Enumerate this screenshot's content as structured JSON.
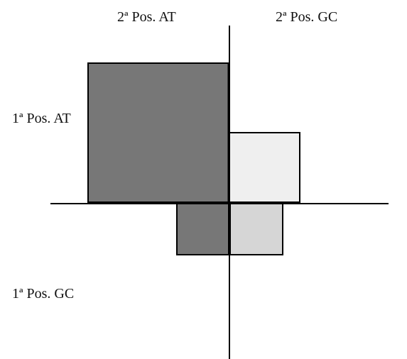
{
  "labels": {
    "top_left": "2ª Pos. AT",
    "top_right": "2ª Pos. GC",
    "left_upper": "1ª Pos. AT",
    "left_lower": "1ª Pos. GC"
  },
  "colors": {
    "background": "#ffffff",
    "axis": "#000000",
    "dark_fill": "#777777",
    "very_light_fill": "#efefef",
    "light_fill": "#d6d6d6",
    "outline": "#000000"
  }
}
